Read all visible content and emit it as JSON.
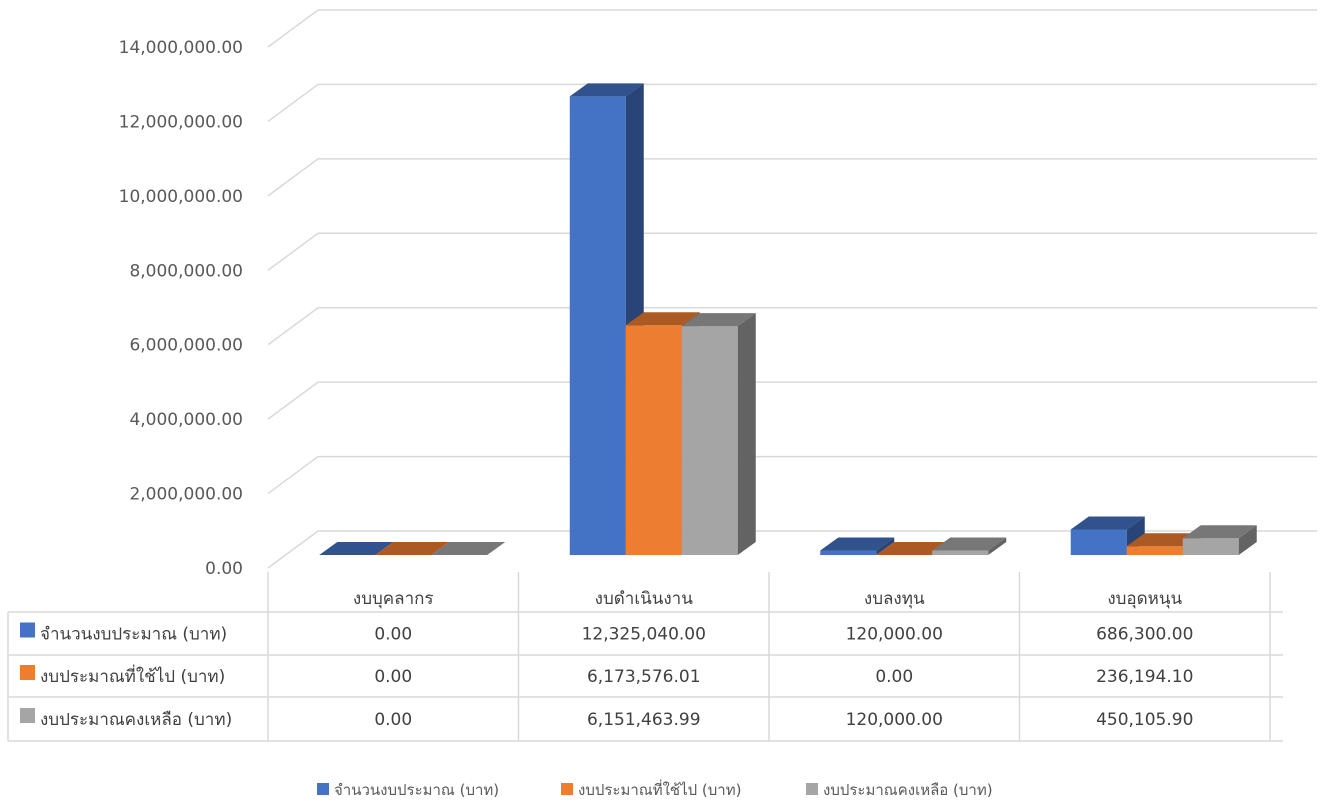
{
  "chart_data": {
    "type": "bar",
    "categories": [
      "งบบุคลากร",
      "งบดำเนินงาน",
      "งบลงทุน",
      "งบอุดหนุน"
    ],
    "series": [
      {
        "name": "จำนวนงบประมาณ (บาท)",
        "values": [
          0,
          12325040,
          120000,
          686300
        ],
        "labels": [
          "0.00",
          "12,325,040.00",
          "120,000.00",
          "686,300.00"
        ],
        "color": "#4472C4"
      },
      {
        "name": "งบประมาณที่ใช้ไป (บาท)",
        "values": [
          0,
          6173576.01,
          0,
          236194.1
        ],
        "labels": [
          "0.00",
          "6,173,576.01",
          "0.00",
          "236,194.10"
        ],
        "color": "#ED7D31"
      },
      {
        "name": "งบประมาณคงเหลือ (บาท)",
        "values": [
          0,
          6151463.99,
          120000,
          450105.9
        ],
        "labels": [
          "0.00",
          "6,151,463.99",
          "120,000.00",
          "450,105.90"
        ],
        "color": "#A5A5A5"
      }
    ],
    "y_ticks": [
      "0.00",
      "2,000,000.00",
      "4,000,000.00",
      "6,000,000.00",
      "8,000,000.00",
      "10,000,000.00",
      "12,000,000.00",
      "14,000,000.00"
    ],
    "ylim": [
      0,
      14000000
    ],
    "grid": true,
    "data_table": true,
    "legend_position": "bottom"
  }
}
